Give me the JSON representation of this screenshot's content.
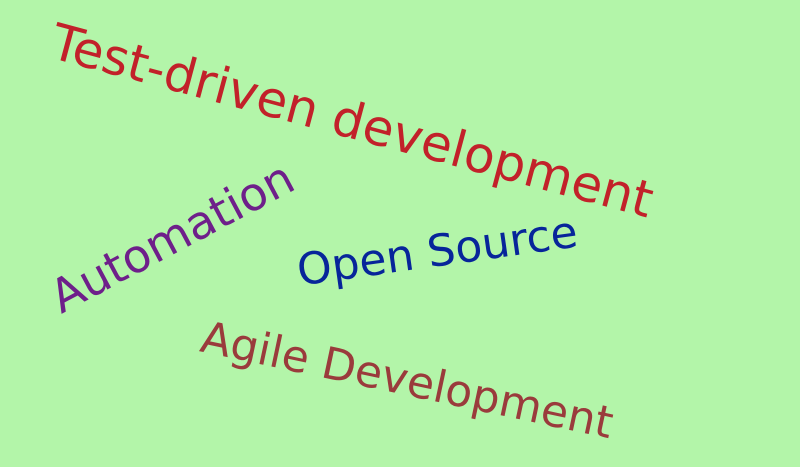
{
  "background": "#b3f5a9",
  "words": [
    {
      "text": "Test-driven development",
      "color": "#c2212a"
    },
    {
      "text": "Automation",
      "color": "#6e1f8a"
    },
    {
      "text": "Open Source",
      "color": "#07259a"
    },
    {
      "text": "Agile Development",
      "color": "#9a3b3c"
    }
  ]
}
